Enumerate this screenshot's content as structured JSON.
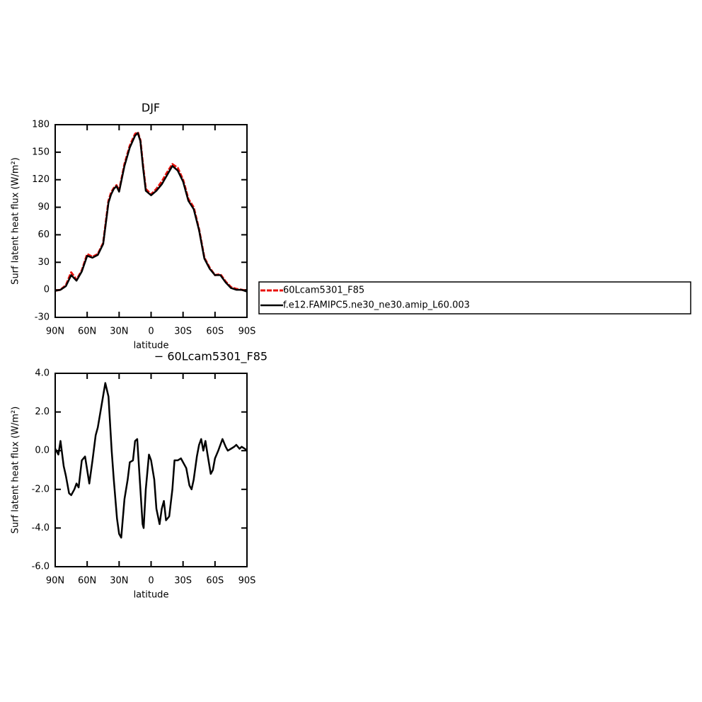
{
  "chart_data": [
    {
      "type": "line",
      "title": "DJF",
      "xlabel": "latitude",
      "ylabel": "Surf latent heat flux (W/m²)",
      "x": [
        90,
        85,
        80,
        75,
        70,
        65,
        60,
        55,
        50,
        45,
        40,
        37.5,
        35,
        32.5,
        30,
        25,
        20,
        15,
        12.5,
        10,
        7.5,
        5,
        0,
        -5,
        -10,
        -15,
        -20,
        -25,
        -30,
        -35,
        -40,
        -45,
        -50,
        -55,
        -60,
        -65,
        -70,
        -75,
        -80,
        -85,
        -90
      ],
      "series": [
        {
          "name": "60Lcam5301_F85",
          "color": "#e8120c",
          "dashed": true,
          "values": [
            -1,
            0,
            5,
            19,
            11,
            21,
            39,
            36,
            39,
            51,
            97,
            106,
            111,
            114,
            108,
            137,
            157,
            170,
            172,
            163,
            135,
            110,
            104,
            110,
            118,
            128,
            137,
            133,
            120,
            99,
            90,
            66,
            35,
            24,
            16,
            17,
            9,
            3,
            1,
            0,
            -1
          ]
        },
        {
          "name": "f.e12.FAMIPC5.ne30_ne30.amip_L60.003",
          "color": "#000000",
          "dashed": false,
          "values": [
            -1,
            0,
            4,
            16,
            10,
            20,
            37,
            35,
            38,
            50,
            95,
            104,
            110,
            113,
            107,
            135,
            155,
            168,
            171,
            162,
            133,
            108,
            103,
            108,
            115,
            125,
            135,
            130,
            118,
            97,
            88,
            65,
            34,
            23,
            16,
            16,
            8,
            2,
            0,
            0,
            -2
          ]
        }
      ],
      "xlim": [
        90,
        -90
      ],
      "xticks": [
        {
          "value": 90,
          "label": "90N"
        },
        {
          "value": 60,
          "label": "60N"
        },
        {
          "value": 30,
          "label": "30N"
        },
        0,
        {
          "value": -30,
          "label": "30S"
        },
        {
          "value": -60,
          "label": "60S"
        },
        {
          "value": -90,
          "label": "90S"
        }
      ],
      "ylim": [
        -30,
        180
      ],
      "yticks": [
        -30,
        0,
        30,
        60,
        90,
        120,
        150,
        180
      ]
    },
    {
      "type": "line",
      "title": "− 60Lcam5301_F85",
      "xlabel": "latitude",
      "ylabel": "Surf latent heat flux (W/m²)",
      "x": [
        90,
        87,
        85,
        82,
        80,
        77,
        75,
        72,
        70,
        68,
        65,
        62,
        60,
        58,
        55,
        52,
        50,
        46,
        43,
        40,
        37,
        35,
        32,
        30,
        28,
        25,
        22,
        20,
        17,
        15,
        13,
        10,
        8,
        7,
        5,
        2,
        0,
        -3,
        -5,
        -8,
        -10,
        -12,
        -14,
        -17,
        -20,
        -22,
        -25,
        -28,
        -30,
        -33,
        -36,
        -38,
        -40,
        -43,
        -45,
        -47,
        -49,
        -51,
        -53,
        -56,
        -58,
        -60,
        -63,
        -65,
        -67,
        -70,
        -72,
        -75,
        -78,
        -80,
        -83,
        -85,
        -88,
        -90
      ],
      "series": [
        {
          "color": "#000000",
          "dashed": false,
          "values": [
            0.1,
            -0.2,
            0.5,
            -0.8,
            -1.3,
            -2.2,
            -2.3,
            -2.0,
            -1.7,
            -1.9,
            -0.5,
            -0.3,
            -1.0,
            -1.7,
            -0.5,
            0.8,
            1.2,
            2.5,
            3.5,
            2.8,
            0.0,
            -1.5,
            -3.5,
            -4.3,
            -4.5,
            -2.5,
            -1.5,
            -0.6,
            -0.5,
            0.5,
            0.6,
            -2.0,
            -3.8,
            -4.0,
            -2.0,
            -0.2,
            -0.5,
            -1.5,
            -3.0,
            -3.8,
            -3.0,
            -2.6,
            -3.6,
            -3.4,
            -2.0,
            -0.5,
            -0.5,
            -0.4,
            -0.6,
            -0.9,
            -1.8,
            -2.0,
            -1.5,
            -0.3,
            0.3,
            0.6,
            0.0,
            0.5,
            -0.2,
            -1.2,
            -1.0,
            -0.4,
            0.0,
            0.3,
            0.6,
            0.2,
            0.0,
            0.1,
            0.2,
            0.3,
            0.1,
            0.2,
            0.1,
            0.0
          ]
        }
      ],
      "xlim": [
        90,
        -90
      ],
      "xticks": [
        {
          "value": 90,
          "label": "90N"
        },
        {
          "value": 60,
          "label": "60N"
        },
        {
          "value": 30,
          "label": "30N"
        },
        0,
        {
          "value": -30,
          "label": "30S"
        },
        {
          "value": -60,
          "label": "60S"
        },
        {
          "value": -90,
          "label": "90S"
        }
      ],
      "ylim": [
        -6,
        4
      ],
      "yticks": [
        {
          "value": -6,
          "label": "-6.0"
        },
        {
          "value": -4,
          "label": "-4.0"
        },
        {
          "value": -2,
          "label": "-2.0"
        },
        {
          "value": 0,
          "label": "0.0"
        },
        {
          "value": 2,
          "label": "2.0"
        },
        {
          "value": 4,
          "label": "4.0"
        }
      ]
    }
  ]
}
